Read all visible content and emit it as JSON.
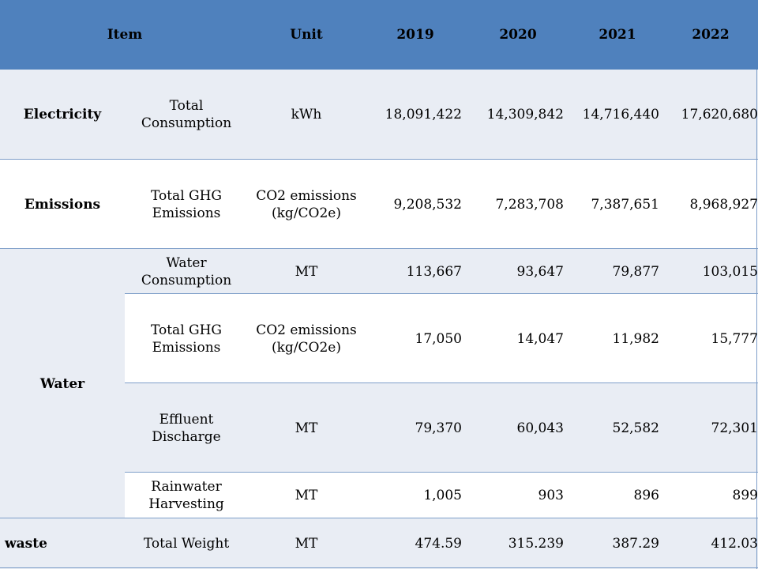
{
  "table": {
    "header": {
      "item": "Item",
      "unit": "Unit",
      "years": [
        "2019",
        "2020",
        "2021",
        "2022"
      ]
    },
    "rows": [
      {
        "category": "Electricity",
        "metric": "Total Consumption",
        "unit": "kWh",
        "values": [
          "18,091,422",
          "14,309,842",
          "14,716,440",
          "17,620,680"
        ]
      },
      {
        "category": "Emissions",
        "metric": "Total GHG Emissions",
        "unit": "CO2 emissions (kg/CO2e)",
        "values": [
          "9,208,532",
          "7,283,708",
          "7,387,651",
          "8,968,927"
        ]
      },
      {
        "category": "Water",
        "metric": "Water Consumption",
        "unit": "MT",
        "values": [
          "113,667",
          "93,647",
          "79,877",
          "103,015"
        ]
      },
      {
        "category": "",
        "metric": "Total GHG Emissions",
        "unit": "CO2 emissions (kg/CO2e)",
        "values": [
          "17,050",
          "14,047",
          "11,982",
          "15,777"
        ]
      },
      {
        "category": "",
        "metric": "Effluent Discharge",
        "unit": "MT",
        "values": [
          "79,370",
          "60,043",
          "52,582",
          "72,301"
        ]
      },
      {
        "category": "",
        "metric": "Rainwater Harvesting",
        "unit": "MT",
        "values": [
          "1,005",
          "903",
          "896",
          "899"
        ]
      },
      {
        "category": "waste",
        "metric": "Total Weight",
        "unit": "MT",
        "values": [
          "474.59",
          "315.239",
          "387.29",
          "412.03"
        ]
      }
    ]
  }
}
